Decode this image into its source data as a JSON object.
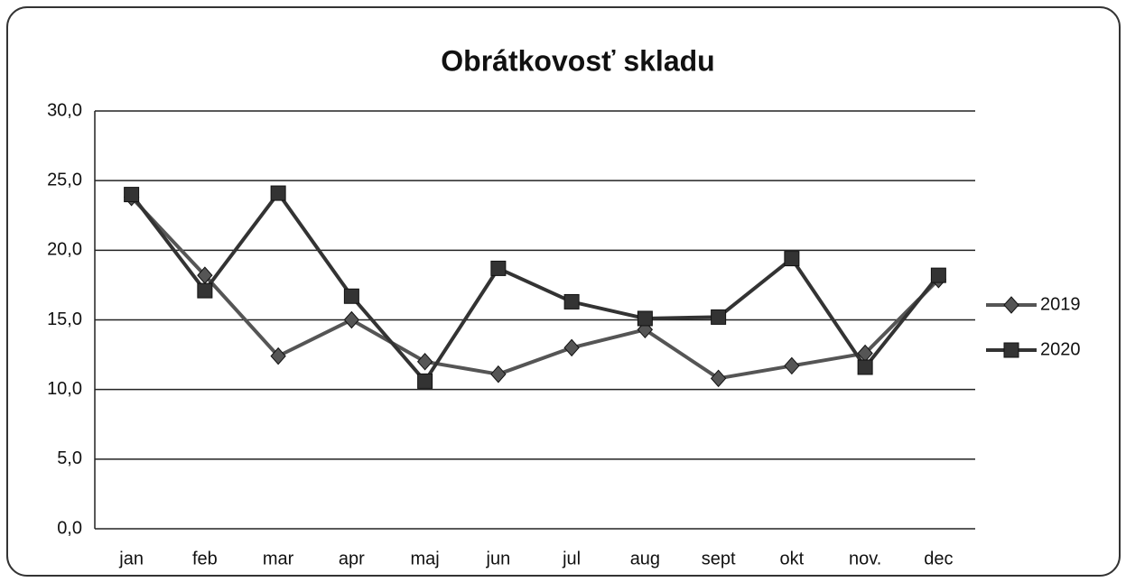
{
  "chart_data": {
    "type": "line",
    "title": "Obrátkovosť skladu",
    "categories": [
      "jan",
      "feb",
      "mar",
      "apr",
      "maj",
      "jun",
      "jul",
      "aug",
      "sept",
      "okt",
      "nov.",
      "dec"
    ],
    "series": [
      {
        "name": "2019",
        "color": "#555555",
        "marker": "diamond",
        "values": [
          23.8,
          18.2,
          12.4,
          15.0,
          12.0,
          11.1,
          13.0,
          14.3,
          10.8,
          11.7,
          12.6,
          17.9
        ]
      },
      {
        "name": "2020",
        "color": "#333333",
        "marker": "square",
        "values": [
          24.0,
          17.1,
          24.1,
          16.7,
          10.6,
          18.7,
          16.3,
          15.1,
          15.2,
          19.4,
          11.6,
          18.2
        ]
      }
    ],
    "ylim": [
      0,
      30
    ],
    "yticks": [
      {
        "value": 0,
        "label": "0,0"
      },
      {
        "value": 5,
        "label": "5,0"
      },
      {
        "value": 10,
        "label": "10,0"
      },
      {
        "value": 15,
        "label": "15,0"
      },
      {
        "value": 20,
        "label": "20,0"
      },
      {
        "value": 25,
        "label": "25,0"
      },
      {
        "value": 30,
        "label": "30,0"
      }
    ],
    "grid": true,
    "legend": "right"
  }
}
